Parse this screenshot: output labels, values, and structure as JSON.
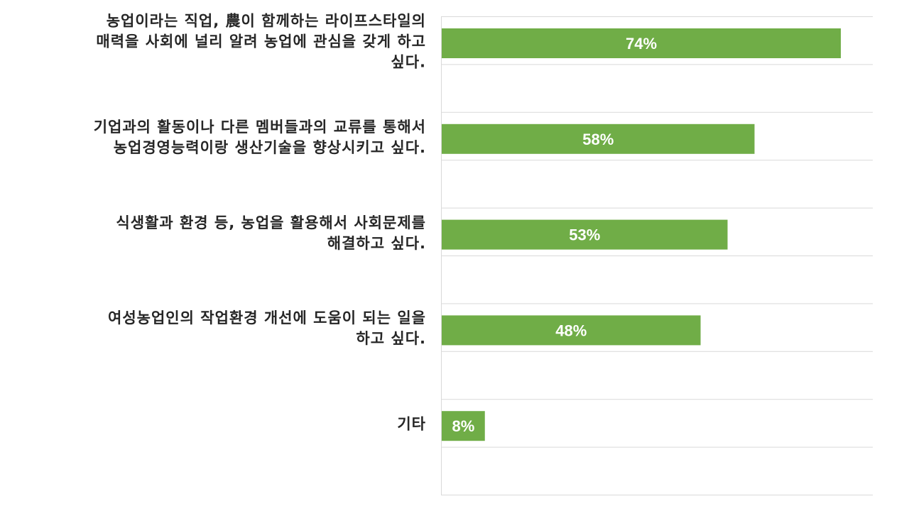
{
  "chart_data": {
    "type": "bar",
    "orientation": "horizontal",
    "categories": [
      "농업이라는 직업, 農이 함께하는 라이프스타일의\n매력을 사회에 널리 알려 농업에 관심을 갖게 하고\n싶다.",
      "기업과의 활동이나 다른 멤버들과의 교류를 통해서\n농업경영능력이랑 생산기술을 향상시키고 싶다.",
      "식생활과 환경 등, 농업을 활용해서 사회문제를\n해결하고 싶다.",
      "여성농업인의 작업환경 개선에 도움이 되는 일을\n하고 싶다.",
      "기타"
    ],
    "values": [
      74,
      58,
      53,
      48,
      8
    ],
    "data_labels": [
      "74%",
      "58%",
      "53%",
      "48%",
      "8%"
    ],
    "xlim": [
      0,
      80
    ],
    "grid": true,
    "legend": "none",
    "bar_color": "#70ad47"
  }
}
